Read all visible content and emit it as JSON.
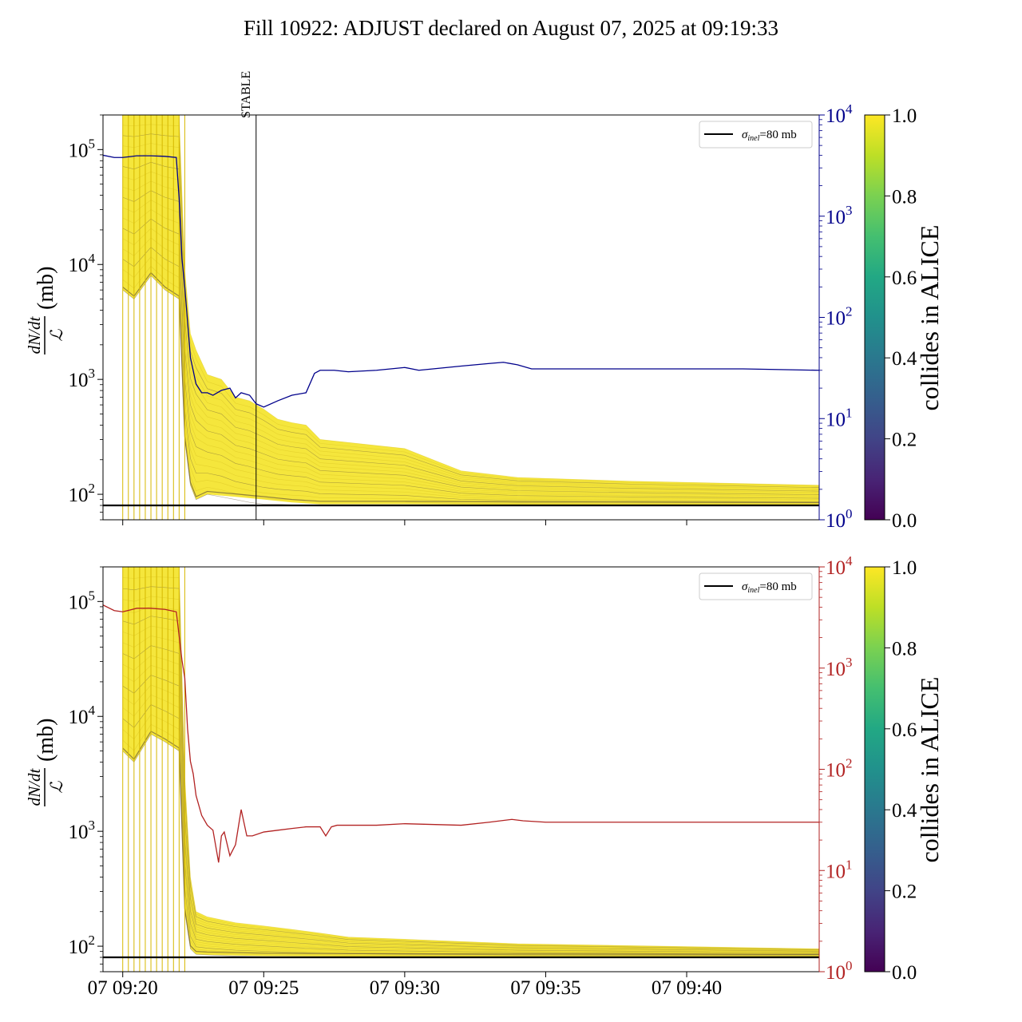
{
  "title": "Fill 10922: ADJUST declared on August 07, 2025 at 09:19:33",
  "x_ticks": [
    "07 09:20",
    "07 09:25",
    "07 09:30",
    "07 09:35",
    "07 09:40"
  ],
  "stable_label": "STABLE",
  "legend_label": "σ_inel=80 mb",
  "legend_main": "σ",
  "legend_sub": "inel",
  "legend_rest": "=80 mb",
  "ylabel_num": "dN/dt",
  "ylabel_den": "ℒ",
  "ylabel_unit": "(mb)",
  "colorbar_label": "collides in ALICE",
  "colorbar_ticks": [
    "0.0",
    "0.2",
    "0.4",
    "0.6",
    "0.8",
    "1.0"
  ],
  "colors": {
    "upper_right_axis": "#00008b",
    "lower_right_axis": "#b22222",
    "reference_line": "#000000",
    "bunch_traces": "#f0e000",
    "colormap": "viridis"
  },
  "chart_data": [
    {
      "type": "line",
      "panel": "upper",
      "x_unit": "minutes after 09:20",
      "xlim": [
        -0.7,
        24.7
      ],
      "left_axis": {
        "scale": "log",
        "ylim": [
          60,
          200000
        ],
        "ticks": [
          "10^2",
          "10^3",
          "10^4",
          "10^5"
        ]
      },
      "right_axis": {
        "scale": "log",
        "ylim": [
          1,
          10000
        ],
        "ticks": [
          "10^0",
          "10^1",
          "10^2",
          "10^3",
          "10^4"
        ],
        "color": "#00008b"
      },
      "reference_line": {
        "y": 80,
        "label": "σ_inel=80 mb"
      },
      "stable_marker_x": 4.73,
      "series": [
        {
          "axis": "right",
          "color": "#00008b",
          "x": [
            -0.7,
            -0.3,
            0,
            0.5,
            1.0,
            1.5,
            1.9,
            2.0,
            2.1,
            2.2,
            2.3,
            2.4,
            2.6,
            2.8,
            3.0,
            3.2,
            3.5,
            3.8,
            4.0,
            4.2,
            4.5,
            4.73,
            5.0,
            5.5,
            6.0,
            6.5,
            6.8,
            7.0,
            7.5,
            8.0,
            9.0,
            10.0,
            10.5,
            11.0,
            12.0,
            13.0,
            13.5,
            14.0,
            14.5,
            15.0,
            17.0,
            20.0,
            22.0,
            24.7
          ],
          "y": [
            4000,
            3800,
            3800,
            3950,
            3950,
            3900,
            3800,
            1500,
            380,
            200,
            90,
            40,
            22,
            18,
            18,
            17,
            19,
            20,
            16,
            18,
            17,
            14,
            13,
            15,
            17,
            18,
            28,
            30,
            30,
            29,
            30,
            32,
            30,
            31,
            33,
            35,
            36,
            34,
            31,
            31,
            31,
            31,
            31,
            30
          ]
        },
        {
          "axis": "left",
          "name_hidden": "bunch rates (upper envelope)",
          "color": "#f0e000",
          "x": [
            0,
            0.4,
            1.0,
            1.5,
            2.0,
            2.2,
            2.4,
            2.6,
            3.0,
            3.5,
            4.0,
            4.5,
            5.0,
            5.5,
            6.0,
            6.5,
            7.0,
            10.0,
            11.0,
            12.0,
            14.0,
            18.0,
            24.7
          ],
          "y": [
            200000,
            200000,
            200000,
            200000,
            200000,
            9000,
            2500,
            1800,
            1100,
            1000,
            700,
            650,
            550,
            450,
            420,
            400,
            300,
            250,
            200,
            160,
            140,
            130,
            120
          ]
        },
        {
          "axis": "left",
          "name_hidden": "bunch rates (lower envelope)",
          "color": "#7a6a3a",
          "x": [
            0,
            0.4,
            1.0,
            1.5,
            2.0,
            2.2,
            2.4,
            2.6,
            3.0,
            4.0,
            5.0,
            6.0,
            7.0,
            10.0,
            14.0,
            24.7
          ],
          "y": [
            6000,
            5000,
            8000,
            6000,
            5000,
            300,
            120,
            90,
            100,
            95,
            90,
            85,
            82,
            82,
            81,
            80
          ]
        }
      ]
    },
    {
      "type": "line",
      "panel": "lower",
      "x_unit": "minutes after 09:20",
      "xlim": [
        -0.7,
        24.7
      ],
      "left_axis": {
        "scale": "log",
        "ylim": [
          60,
          200000
        ],
        "ticks": [
          "10^2",
          "10^3",
          "10^4",
          "10^5"
        ]
      },
      "right_axis": {
        "scale": "log",
        "ylim": [
          1,
          10000
        ],
        "ticks": [
          "10^0",
          "10^1",
          "10^2",
          "10^3",
          "10^4"
        ],
        "color": "#b22222"
      },
      "reference_line": {
        "y": 80,
        "label": "σ_inel=80 mb"
      },
      "series": [
        {
          "axis": "right",
          "color": "#b22222",
          "x": [
            -0.7,
            -0.3,
            0,
            0.5,
            1.0,
            1.5,
            1.9,
            2.1,
            2.2,
            2.3,
            2.4,
            2.5,
            2.6,
            2.8,
            3.0,
            3.2,
            3.4,
            3.5,
            3.6,
            3.8,
            4.0,
            4.2,
            4.4,
            4.6,
            5.0,
            5.5,
            6.0,
            6.5,
            7.0,
            7.2,
            7.4,
            7.6,
            8.0,
            9.0,
            10.0,
            12.0,
            13.0,
            13.8,
            14.2,
            15.0,
            20.0,
            24.7
          ],
          "y": [
            4200,
            3700,
            3600,
            3900,
            3900,
            3800,
            3600,
            1200,
            800,
            250,
            120,
            90,
            55,
            35,
            28,
            25,
            12,
            22,
            24,
            14,
            18,
            40,
            22,
            22,
            24,
            25,
            26,
            27,
            27,
            22,
            27,
            28,
            28,
            28,
            29,
            28,
            30,
            32,
            31,
            30,
            30,
            30
          ]
        },
        {
          "axis": "left",
          "name_hidden": "bunch rates (upper envelope)",
          "color": "#f0e000",
          "x": [
            0,
            0.4,
            1.0,
            1.5,
            2.0,
            2.2,
            2.4,
            2.6,
            3.0,
            4.0,
            5.0,
            6.0,
            7.0,
            8.0,
            10.0,
            14.0,
            24.7
          ],
          "y": [
            200000,
            200000,
            200000,
            200000,
            200000,
            3000,
            400,
            200,
            180,
            160,
            150,
            140,
            130,
            120,
            115,
            105,
            95
          ]
        },
        {
          "axis": "left",
          "name_hidden": "bunch rates (lower envelope)",
          "color": "#7a6a3a",
          "x": [
            0,
            0.4,
            1.0,
            1.5,
            2.0,
            2.2,
            2.4,
            2.6,
            3.0,
            5.0,
            10.0,
            24.7
          ],
          "y": [
            5000,
            4000,
            7000,
            6000,
            5000,
            200,
            95,
            85,
            84,
            82,
            81,
            80
          ]
        }
      ]
    }
  ]
}
